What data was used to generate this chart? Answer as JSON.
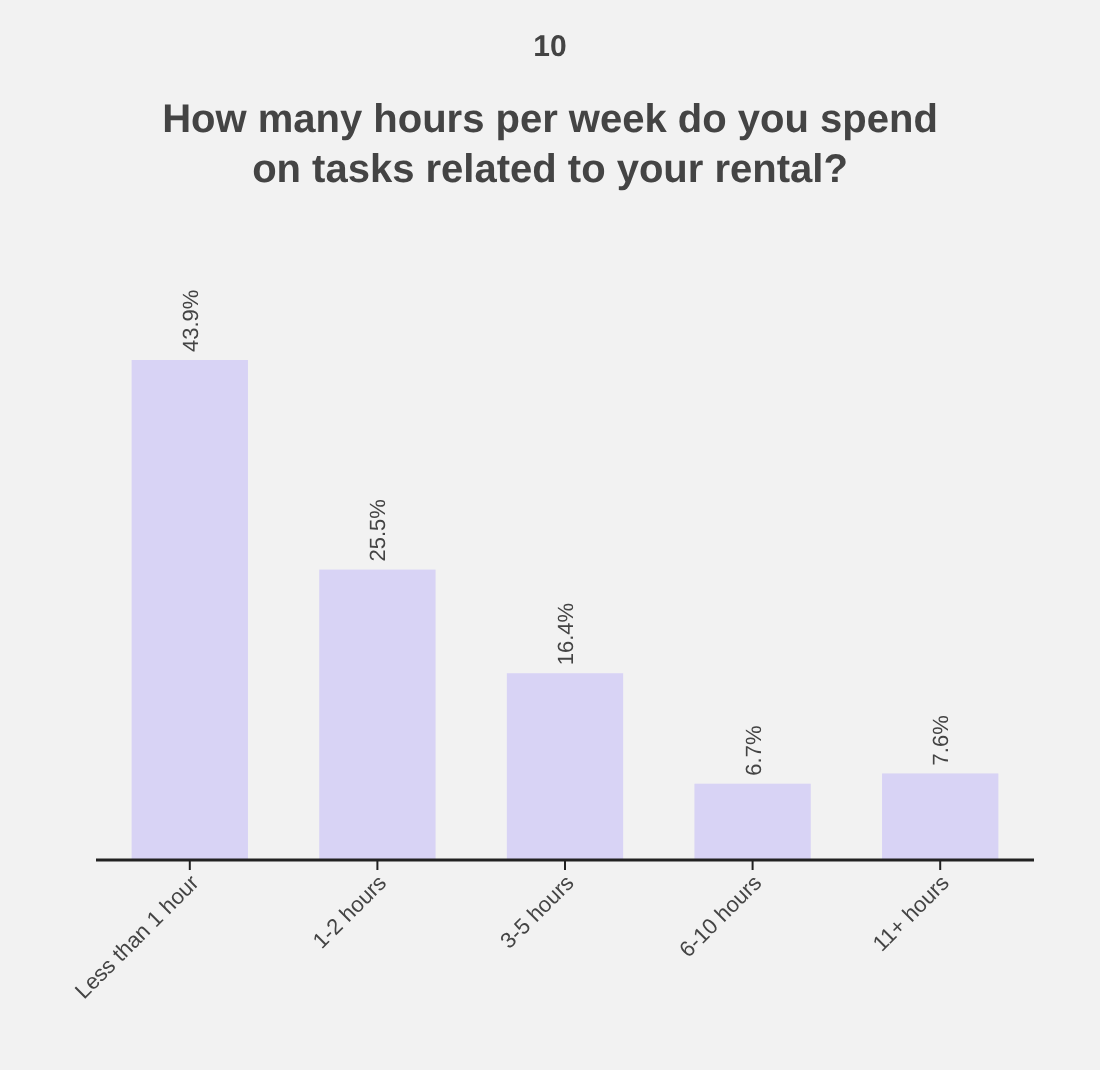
{
  "chart_data": {
    "type": "bar",
    "title": "How many hours per week do you spend on tasks related to your rental?",
    "annotations": [
      "10"
    ],
    "categories": [
      "Less than 1 hour",
      "1-2 hours",
      "3-5 hours",
      "6-10 hours",
      "11+ hours"
    ],
    "values": [
      43.9,
      25.5,
      16.4,
      6.7,
      7.6
    ],
    "value_labels": [
      "43.9%",
      "25.5%",
      "16.4%",
      "6.7%",
      "7.6%"
    ],
    "color": "#d8d3f5"
  }
}
